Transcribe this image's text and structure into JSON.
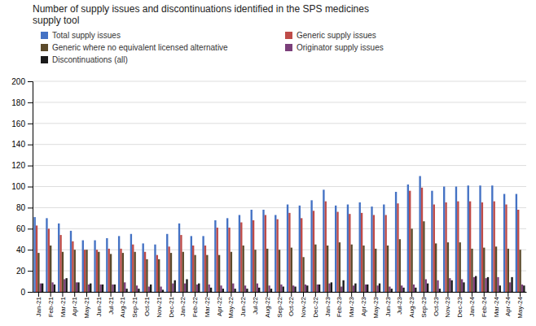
{
  "chart_data": {
    "type": "bar",
    "title": "Number of supply issues and discontinuations identified in the SPS medicines\nsupply tool",
    "categories": [
      "Jan-21",
      "Feb-21",
      "Mar-21",
      "Apr-21",
      "May-21",
      "Jun-21",
      "Jul-21",
      "Aug-21",
      "Sep-21",
      "Oct-21",
      "Nov-21",
      "Dec-21",
      "Jan-22",
      "Feb-22",
      "Mar-22",
      "Apr-22",
      "May-22",
      "Jun-22",
      "Jul-22",
      "Aug-22",
      "Sep-22",
      "Oct-22",
      "Nov-22",
      "Dec-22",
      "Jan-23",
      "Feb-23",
      "Mar-23",
      "Apr-23",
      "May-23",
      "Jun-23",
      "Jul-23",
      "Aug-23",
      "Sep-23",
      "Oct-23",
      "Nov-23",
      "Dec-23",
      "Jan-24",
      "Feb-24",
      "Mar-24",
      "Apr-24",
      "May-24"
    ],
    "series": [
      {
        "name": "Total supply issues",
        "color": "#4472C4",
        "values": [
          71,
          70,
          65,
          58,
          49,
          49,
          51,
          53,
          55,
          46,
          45,
          55,
          65,
          53,
          53,
          68,
          70,
          73,
          78,
          78,
          73,
          83,
          82,
          87,
          97,
          82,
          83,
          85,
          81,
          83,
          95,
          102,
          110,
          96,
          100,
          100,
          101,
          101,
          101,
          93,
          93
        ]
      },
      {
        "name": "Generic supply issues",
        "color": "#BE4B48",
        "values": [
          63,
          60,
          54,
          48,
          40,
          40,
          41,
          41,
          45,
          38,
          35,
          43,
          54,
          44,
          44,
          61,
          61,
          66,
          68,
          73,
          69,
          75,
          70,
          77,
          86,
          76,
          74,
          75,
          73,
          73,
          84,
          96,
          99,
          83,
          85,
          86,
          86,
          85,
          86,
          83,
          78
        ]
      },
      {
        "name": "Generic where no equivalent licensed alternative",
        "color": "#5B4A2B",
        "values": [
          37,
          44,
          38,
          40,
          40,
          38,
          36,
          37,
          38,
          31,
          31,
          37,
          38,
          35,
          35,
          35,
          38,
          44,
          40,
          41,
          40,
          42,
          33,
          45,
          44,
          47,
          45,
          44,
          41,
          44,
          50,
          60,
          67,
          46,
          47,
          47,
          41,
          42,
          43,
          41,
          40
        ]
      },
      {
        "name": "Originator supply issues",
        "color": "#7B3F7A",
        "values": [
          8,
          9,
          12,
          9,
          7,
          7,
          7,
          9,
          6,
          5,
          5,
          8,
          8,
          7,
          7,
          6,
          8,
          6,
          8,
          6,
          7,
          6,
          7,
          7,
          8,
          5,
          6,
          7,
          6,
          5,
          6,
          7,
          12,
          11,
          13,
          12,
          14,
          13,
          14,
          9,
          7
        ]
      },
      {
        "name": "Discontinuations (all)",
        "color": "#1A1A1A",
        "values": [
          8,
          7,
          13,
          9,
          8,
          7,
          7,
          3,
          3,
          7,
          2,
          11,
          12,
          8,
          4,
          3,
          3,
          3,
          4,
          3,
          5,
          5,
          6,
          7,
          9,
          11,
          8,
          7,
          8,
          3,
          4,
          4,
          8,
          3,
          11,
          9,
          15,
          14,
          6,
          14,
          6
        ]
      }
    ],
    "ylim": [
      0,
      200
    ],
    "yticks": [
      0,
      20,
      40,
      60,
      80,
      100,
      120,
      140,
      160,
      180,
      200
    ],
    "grid": true,
    "legend": "top"
  }
}
